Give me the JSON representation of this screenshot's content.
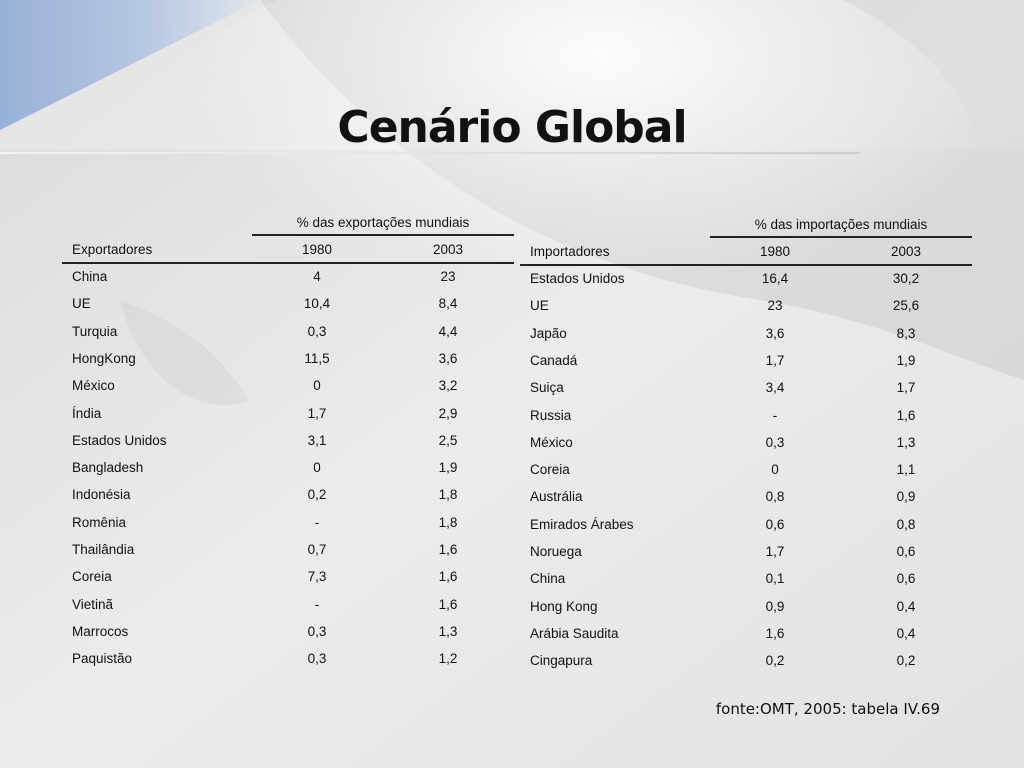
{
  "title": "Cenário Global",
  "exports": {
    "super_header": "% das exportações mundiais",
    "headers": [
      "Exportadores",
      "1980",
      "2003"
    ],
    "rows": [
      [
        "China",
        "4",
        "23"
      ],
      [
        "UE",
        "10,4",
        "8,4"
      ],
      [
        "Turquia",
        "0,3",
        "4,4"
      ],
      [
        "HongKong",
        "11,5",
        "3,6"
      ],
      [
        "México",
        "0",
        "3,2"
      ],
      [
        "Índia",
        "1,7",
        "2,9"
      ],
      [
        "Estados Unidos",
        "3,1",
        "2,5"
      ],
      [
        "Bangladesh",
        "0",
        "1,9"
      ],
      [
        "Indonésia",
        "0,2",
        "1,8"
      ],
      [
        "Romênia",
        "-",
        "1,8"
      ],
      [
        "Thailândia",
        "0,7",
        "1,6"
      ],
      [
        "Coreia",
        "7,3",
        "1,6"
      ],
      [
        "Vietinã",
        "-",
        "1,6"
      ],
      [
        "Marrocos",
        "0,3",
        "1,3"
      ],
      [
        "Paquistão",
        "0,3",
        "1,2"
      ]
    ]
  },
  "imports": {
    "super_header": "% das importações mundiais",
    "headers": [
      "Importadores",
      "1980",
      "2003"
    ],
    "rows": [
      [
        "Estados Unidos",
        "16,4",
        "30,2"
      ],
      [
        "UE",
        "23",
        "25,6"
      ],
      [
        "Japão",
        "3,6",
        "8,3"
      ],
      [
        "Canadá",
        "1,7",
        "1,9"
      ],
      [
        "Suiça",
        "3,4",
        "1,7"
      ],
      [
        "Russia",
        "-",
        "1,6"
      ],
      [
        "México",
        "0,3",
        "1,3"
      ],
      [
        "Coreia",
        "0",
        "1,1"
      ],
      [
        "Austrália",
        "0,8",
        "0,9"
      ],
      [
        "Emirados Árabes",
        "0,6",
        "0,8"
      ],
      [
        "Noruega",
        "1,7",
        "0,6"
      ],
      [
        "China",
        "0,1",
        "0,6"
      ],
      [
        "Hong Kong",
        "0,9",
        "0,4"
      ],
      [
        "Arábia Saudita",
        "1,6",
        "0,4"
      ],
      [
        "Cingapura",
        "0,2",
        "0,2"
      ]
    ]
  },
  "source": "fonte:OMT, 2005: tabela IV.69"
}
